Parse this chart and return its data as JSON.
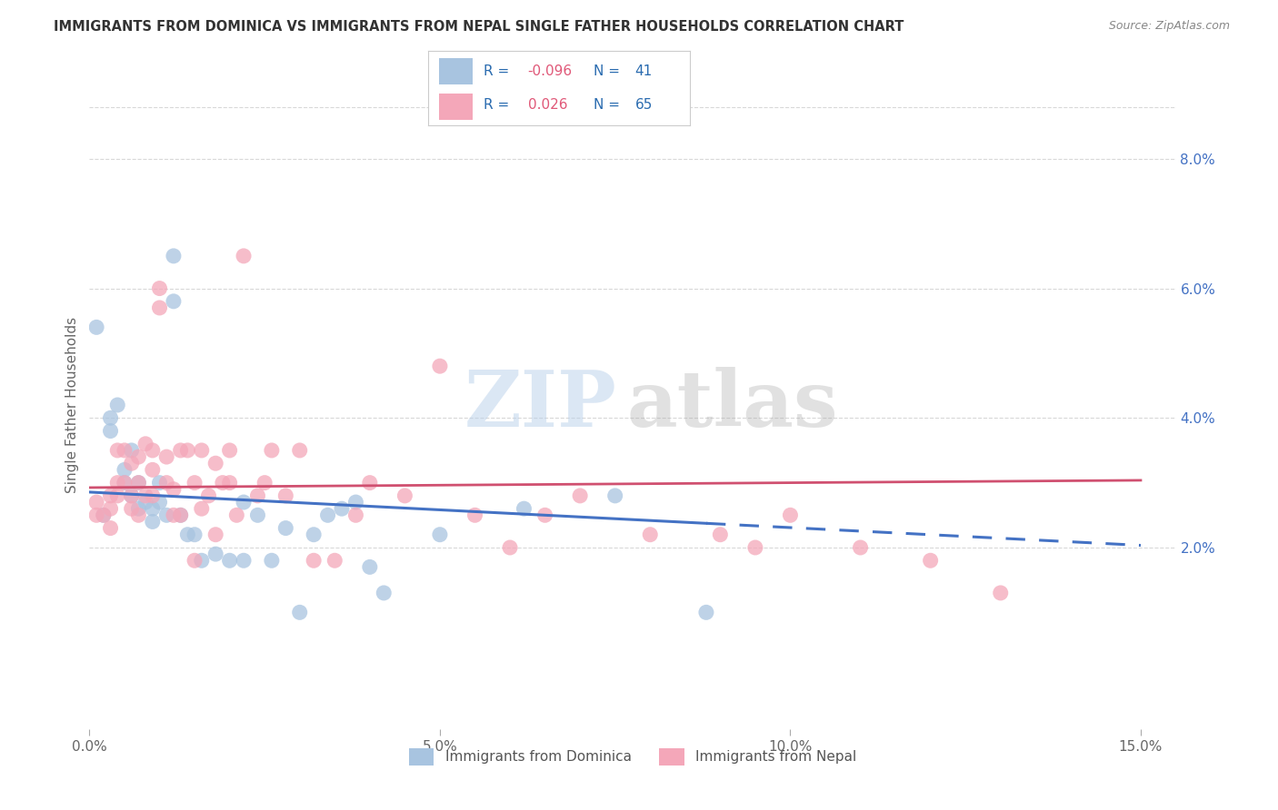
{
  "title": "IMMIGRANTS FROM DOMINICA VS IMMIGRANTS FROM NEPAL SINGLE FATHER HOUSEHOLDS CORRELATION CHART",
  "source": "Source: ZipAtlas.com",
  "ylabel": "Single Father Households",
  "xlim": [
    0.0,
    0.155
  ],
  "ylim": [
    -0.008,
    0.092
  ],
  "xticks": [
    0.0,
    0.05,
    0.1,
    0.15
  ],
  "xticklabels": [
    "0.0%",
    "5.0%",
    "10.0%",
    "15.0%"
  ],
  "yticks_right": [
    0.02,
    0.04,
    0.06,
    0.08
  ],
  "ytick_labels_right": [
    "2.0%",
    "4.0%",
    "6.0%",
    "8.0%"
  ],
  "dominica_color": "#a8c4e0",
  "nepal_color": "#f4a7b9",
  "dominica_line_color": "#4472c4",
  "nepal_line_color": "#d05070",
  "dominica_label": "Immigrants from Dominica",
  "nepal_label": "Immigrants from Nepal",
  "R_dominica": "-0.096",
  "N_dominica": "41",
  "R_nepal": "0.026",
  "N_nepal": "65",
  "legend_blue": "#2b6cb0",
  "legend_pink": "#e05878",
  "background_color": "#ffffff",
  "grid_color": "#d8d8d8",
  "dominica_x": [
    0.001,
    0.002,
    0.003,
    0.003,
    0.004,
    0.005,
    0.005,
    0.006,
    0.006,
    0.007,
    0.007,
    0.008,
    0.009,
    0.009,
    0.01,
    0.01,
    0.011,
    0.012,
    0.012,
    0.013,
    0.014,
    0.015,
    0.016,
    0.018,
    0.02,
    0.022,
    0.022,
    0.024,
    0.026,
    0.028,
    0.03,
    0.032,
    0.034,
    0.036,
    0.038,
    0.04,
    0.042,
    0.05,
    0.062,
    0.075,
    0.088
  ],
  "dominica_y": [
    0.054,
    0.025,
    0.04,
    0.038,
    0.042,
    0.032,
    0.03,
    0.028,
    0.035,
    0.026,
    0.03,
    0.027,
    0.026,
    0.024,
    0.03,
    0.027,
    0.025,
    0.065,
    0.058,
    0.025,
    0.022,
    0.022,
    0.018,
    0.019,
    0.018,
    0.018,
    0.027,
    0.025,
    0.018,
    0.023,
    0.01,
    0.022,
    0.025,
    0.026,
    0.027,
    0.017,
    0.013,
    0.022,
    0.026,
    0.028,
    0.01
  ],
  "nepal_x": [
    0.001,
    0.001,
    0.002,
    0.003,
    0.003,
    0.003,
    0.004,
    0.004,
    0.004,
    0.005,
    0.005,
    0.006,
    0.006,
    0.006,
    0.007,
    0.007,
    0.007,
    0.008,
    0.008,
    0.009,
    0.009,
    0.009,
    0.01,
    0.01,
    0.011,
    0.011,
    0.012,
    0.012,
    0.013,
    0.013,
    0.014,
    0.015,
    0.015,
    0.016,
    0.016,
    0.017,
    0.018,
    0.018,
    0.019,
    0.02,
    0.02,
    0.021,
    0.022,
    0.024,
    0.025,
    0.026,
    0.028,
    0.03,
    0.032,
    0.035,
    0.038,
    0.04,
    0.045,
    0.05,
    0.055,
    0.06,
    0.065,
    0.07,
    0.08,
    0.09,
    0.095,
    0.1,
    0.11,
    0.12,
    0.13
  ],
  "nepal_y": [
    0.027,
    0.025,
    0.025,
    0.028,
    0.026,
    0.023,
    0.035,
    0.03,
    0.028,
    0.035,
    0.03,
    0.028,
    0.033,
    0.026,
    0.034,
    0.03,
    0.025,
    0.036,
    0.028,
    0.032,
    0.028,
    0.035,
    0.06,
    0.057,
    0.034,
    0.03,
    0.029,
    0.025,
    0.035,
    0.025,
    0.035,
    0.03,
    0.018,
    0.026,
    0.035,
    0.028,
    0.033,
    0.022,
    0.03,
    0.035,
    0.03,
    0.025,
    0.065,
    0.028,
    0.03,
    0.035,
    0.028,
    0.035,
    0.018,
    0.018,
    0.025,
    0.03,
    0.028,
    0.048,
    0.025,
    0.02,
    0.025,
    0.028,
    0.022,
    0.022,
    0.02,
    0.025,
    0.02,
    0.018,
    0.013
  ]
}
